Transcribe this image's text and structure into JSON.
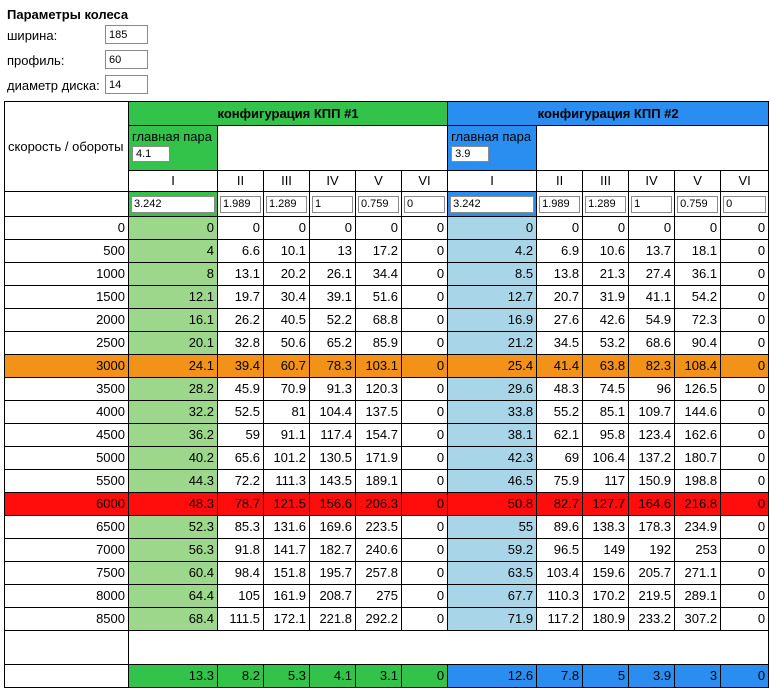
{
  "wheel": {
    "title": "Параметры колеса",
    "fields": [
      {
        "label": "ширина:",
        "value": "185"
      },
      {
        "label": "профиль:",
        "value": "60"
      },
      {
        "label": "диаметр диска:",
        "value": "14"
      }
    ]
  },
  "table": {
    "speed_label": "скорость / обороты",
    "configs": [
      {
        "title": "конфигурация КПП #1",
        "main_pair_label": "главная пара",
        "main_pair": "4.1",
        "gear_labels": [
          "I",
          "II",
          "III",
          "IV",
          "V",
          "VI"
        ],
        "ratios": [
          "3.242",
          "1.989",
          "1.289",
          "1",
          "0.759",
          "0"
        ]
      },
      {
        "title": "конфигурация КПП #2",
        "main_pair_label": "главная пара",
        "main_pair": "3.9",
        "gear_labels": [
          "I",
          "II",
          "III",
          "IV",
          "V",
          "VI"
        ],
        "ratios": [
          "3.242",
          "1.989",
          "1.289",
          "1",
          "0.759",
          "0"
        ]
      }
    ],
    "rows": [
      {
        "rpm": "0",
        "c1": [
          "0",
          "0",
          "0",
          "0",
          "0",
          "0"
        ],
        "c2": [
          "0",
          "0",
          "0",
          "0",
          "0",
          "0"
        ]
      },
      {
        "rpm": "500",
        "c1": [
          "4",
          "6.6",
          "10.1",
          "13",
          "17.2",
          "0"
        ],
        "c2": [
          "4.2",
          "6.9",
          "10.6",
          "13.7",
          "18.1",
          "0"
        ]
      },
      {
        "rpm": "1000",
        "c1": [
          "8",
          "13.1",
          "20.2",
          "26.1",
          "34.4",
          "0"
        ],
        "c2": [
          "8.5",
          "13.8",
          "21.3",
          "27.4",
          "36.1",
          "0"
        ]
      },
      {
        "rpm": "1500",
        "c1": [
          "12.1",
          "19.7",
          "30.4",
          "39.1",
          "51.6",
          "0"
        ],
        "c2": [
          "12.7",
          "20.7",
          "31.9",
          "41.1",
          "54.2",
          "0"
        ]
      },
      {
        "rpm": "2000",
        "c1": [
          "16.1",
          "26.2",
          "40.5",
          "52.2",
          "68.8",
          "0"
        ],
        "c2": [
          "16.9",
          "27.6",
          "42.6",
          "54.9",
          "72.3",
          "0"
        ]
      },
      {
        "rpm": "2500",
        "c1": [
          "20.1",
          "32.8",
          "50.6",
          "65.2",
          "85.9",
          "0"
        ],
        "c2": [
          "21.2",
          "34.5",
          "53.2",
          "68.6",
          "90.4",
          "0"
        ]
      },
      {
        "rpm": "3000",
        "hl": "orange",
        "c1": [
          "24.1",
          "39.4",
          "60.7",
          "78.3",
          "103.1",
          "0"
        ],
        "c2": [
          "25.4",
          "41.4",
          "63.8",
          "82.3",
          "108.4",
          "0"
        ]
      },
      {
        "rpm": "3500",
        "c1": [
          "28.2",
          "45.9",
          "70.9",
          "91.3",
          "120.3",
          "0"
        ],
        "c2": [
          "29.6",
          "48.3",
          "74.5",
          "96",
          "126.5",
          "0"
        ]
      },
      {
        "rpm": "4000",
        "c1": [
          "32.2",
          "52.5",
          "81",
          "104.4",
          "137.5",
          "0"
        ],
        "c2": [
          "33.8",
          "55.2",
          "85.1",
          "109.7",
          "144.6",
          "0"
        ]
      },
      {
        "rpm": "4500",
        "c1": [
          "36.2",
          "59",
          "91.1",
          "117.4",
          "154.7",
          "0"
        ],
        "c2": [
          "38.1",
          "62.1",
          "95.8",
          "123.4",
          "162.6",
          "0"
        ]
      },
      {
        "rpm": "5000",
        "c1": [
          "40.2",
          "65.6",
          "101.2",
          "130.5",
          "171.9",
          "0"
        ],
        "c2": [
          "42.3",
          "69",
          "106.4",
          "137.2",
          "180.7",
          "0"
        ]
      },
      {
        "rpm": "5500",
        "c1": [
          "44.3",
          "72.2",
          "111.3",
          "143.5",
          "189.1",
          "0"
        ],
        "c2": [
          "46.5",
          "75.9",
          "117",
          "150.9",
          "198.8",
          "0"
        ]
      },
      {
        "rpm": "6000",
        "hl": "red",
        "c1": [
          "48.3",
          "78.7",
          "121.5",
          "156.6",
          "206.3",
          "0"
        ],
        "c2": [
          "50.8",
          "82.7",
          "127.7",
          "164.6",
          "216.8",
          "0"
        ]
      },
      {
        "rpm": "6500",
        "c1": [
          "52.3",
          "85.3",
          "131.6",
          "169.6",
          "223.5",
          "0"
        ],
        "c2": [
          "55",
          "89.6",
          "138.3",
          "178.3",
          "234.9",
          "0"
        ]
      },
      {
        "rpm": "7000",
        "c1": [
          "56.3",
          "91.8",
          "141.7",
          "182.7",
          "240.6",
          "0"
        ],
        "c2": [
          "59.2",
          "96.5",
          "149",
          "192",
          "253",
          "0"
        ]
      },
      {
        "rpm": "7500",
        "c1": [
          "60.4",
          "98.4",
          "151.8",
          "195.7",
          "257.8",
          "0"
        ],
        "c2": [
          "63.5",
          "103.4",
          "159.6",
          "205.7",
          "271.1",
          "0"
        ]
      },
      {
        "rpm": "8000",
        "c1": [
          "64.4",
          "105",
          "161.9",
          "208.7",
          "275",
          "0"
        ],
        "c2": [
          "67.7",
          "110.3",
          "170.2",
          "219.5",
          "289.1",
          "0"
        ]
      },
      {
        "rpm": "8500",
        "c1": [
          "68.4",
          "111.5",
          "172.1",
          "221.8",
          "292.2",
          "0"
        ],
        "c2": [
          "71.9",
          "117.2",
          "180.9",
          "233.2",
          "307.2",
          "0"
        ]
      }
    ],
    "totals": {
      "c1": [
        "13.3",
        "8.2",
        "5.3",
        "4.1",
        "3.1",
        "0"
      ],
      "c2": [
        "12.6",
        "7.8",
        "5",
        "3.9",
        "3",
        "0"
      ]
    }
  }
}
